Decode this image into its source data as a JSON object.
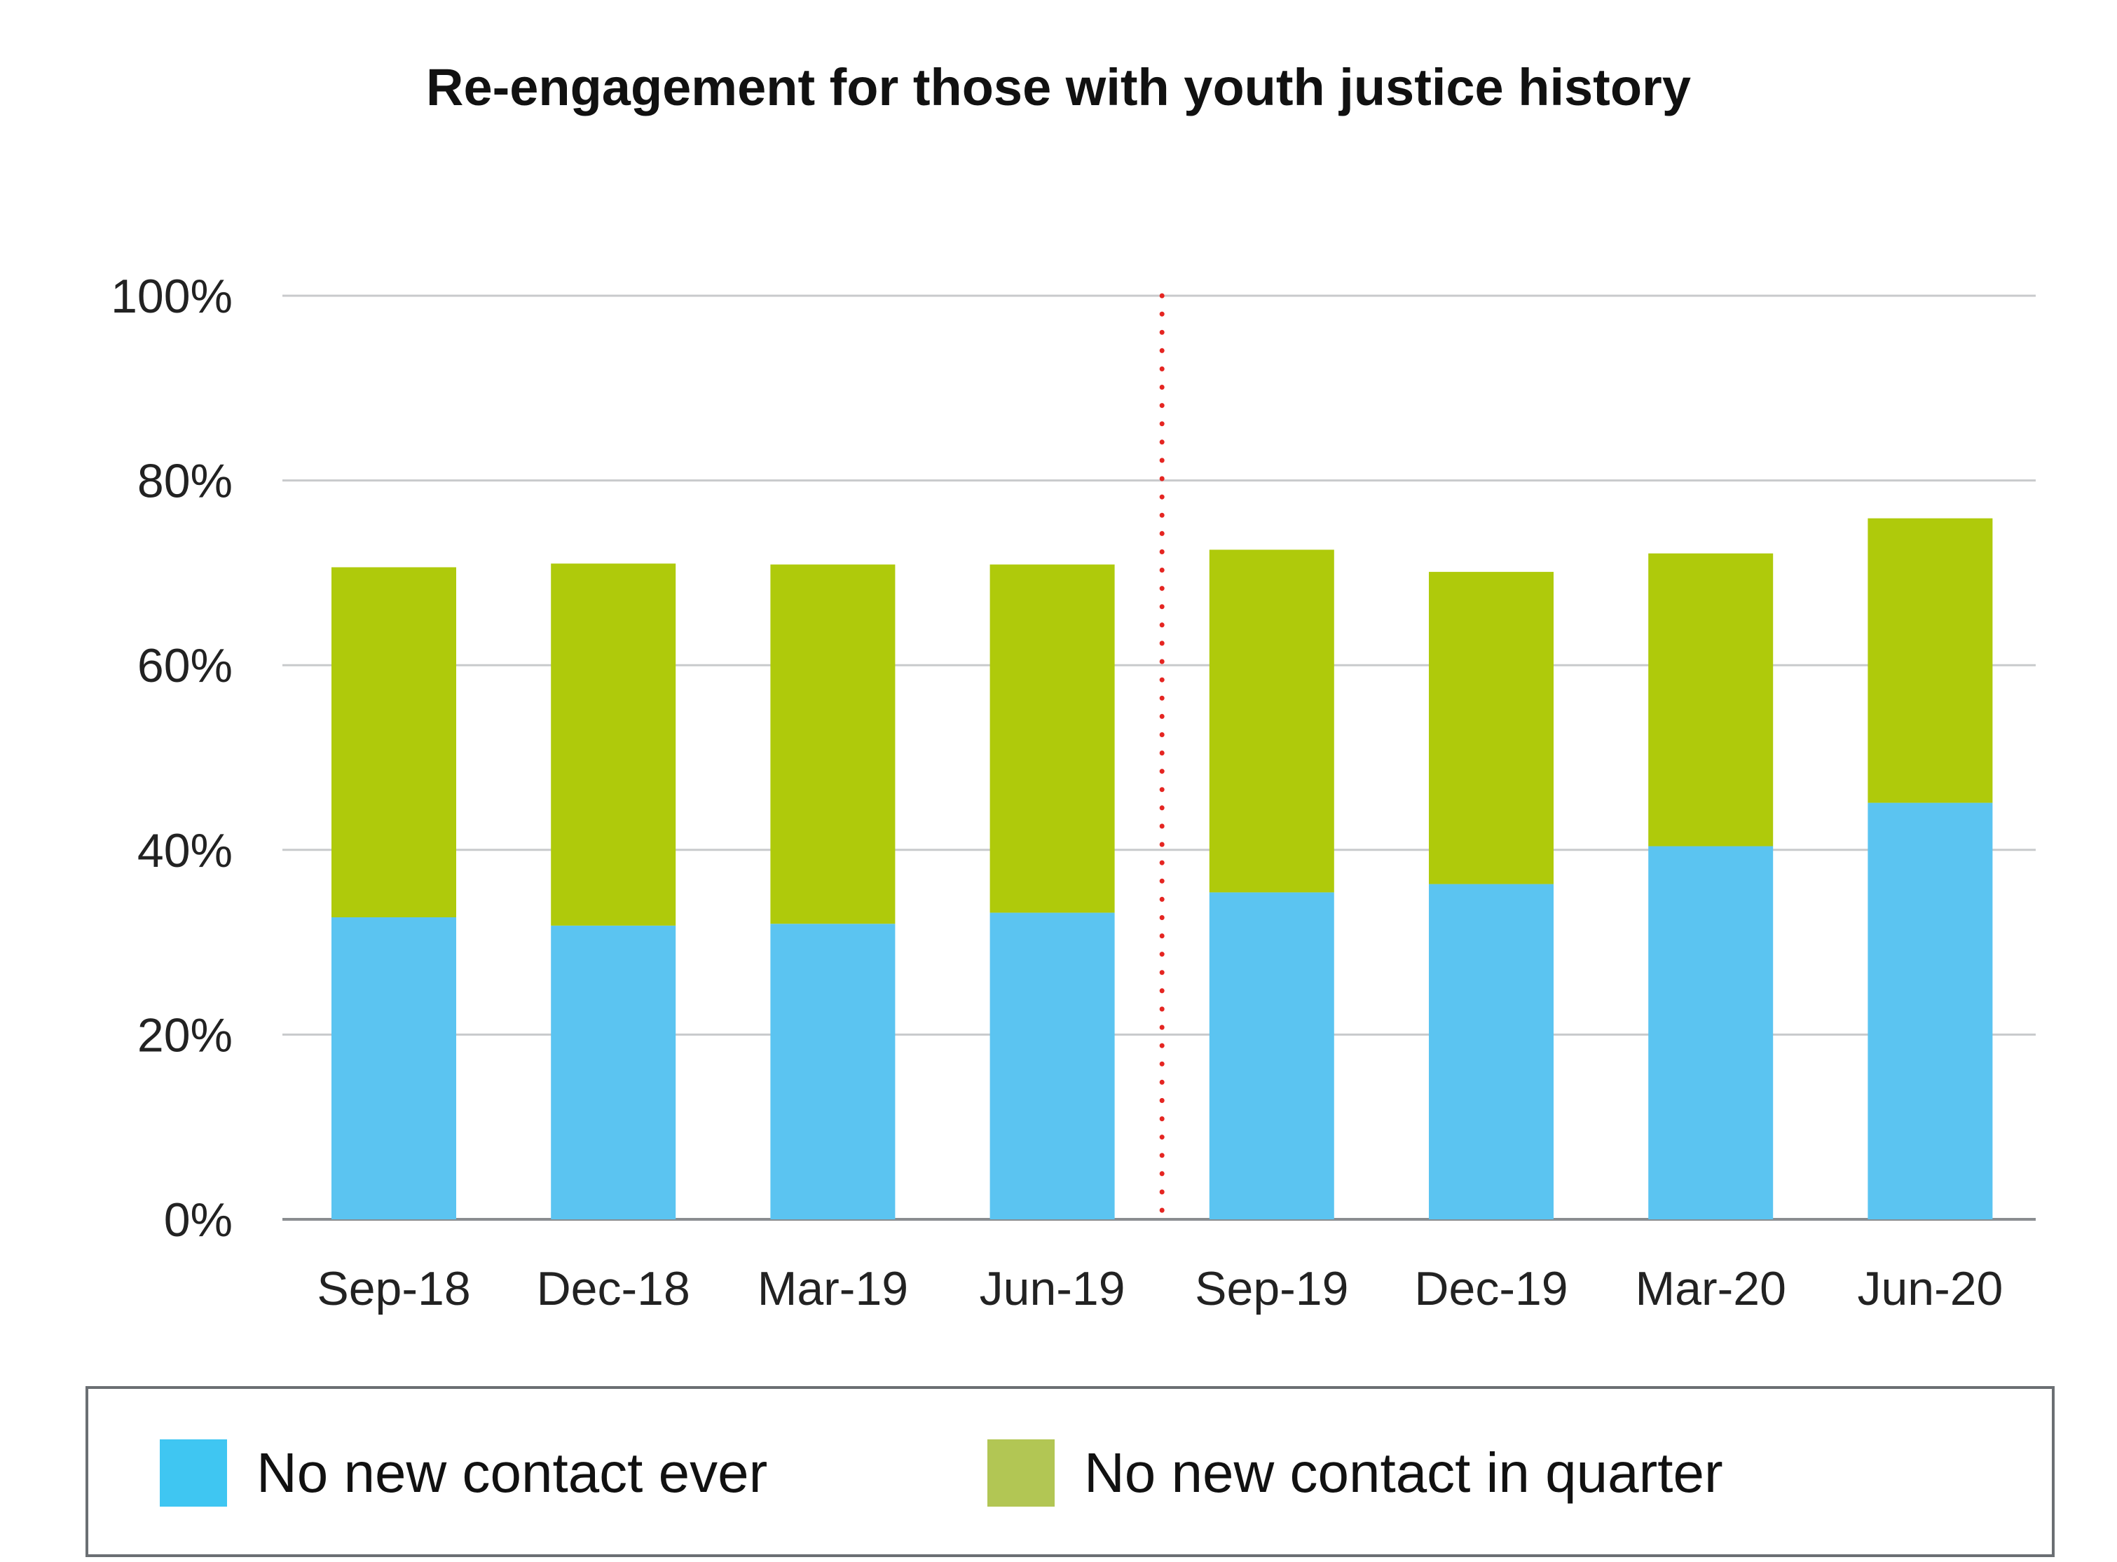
{
  "chart_data": {
    "type": "bar",
    "stacked": true,
    "title": "Re-engagement for those with youth justice history",
    "categories": [
      "Sep-18",
      "Dec-18",
      "Mar-19",
      "Jun-19",
      "Sep-19",
      "Dec-19",
      "Mar-20",
      "Jun-20"
    ],
    "series": [
      {
        "name": "No new contact ever",
        "color": "#5bc4f1",
        "values": [
          32.7,
          31.8,
          32.0,
          33.2,
          35.4,
          36.3,
          40.4,
          45.1
        ]
      },
      {
        "name": "No new contact in quarter",
        "color": "#afca0b",
        "values": [
          37.9,
          39.2,
          38.9,
          37.7,
          37.1,
          33.8,
          31.7,
          30.8
        ]
      }
    ],
    "ylim": [
      0,
      100
    ],
    "yticks": [
      "0%",
      "20%",
      "40%",
      "60%",
      "80%",
      "100%"
    ],
    "ytick_values": [
      0,
      20,
      40,
      60,
      80,
      100
    ],
    "grid": true,
    "reference_line": {
      "type": "vertical",
      "style": "dotted",
      "color": "#e52521",
      "after_category": "Jun-19"
    },
    "legend": {
      "position": "bottom",
      "items": [
        {
          "label": "No new contact ever",
          "color": "#3fc6f2"
        },
        {
          "label": "No new contact in quarter",
          "color": "#b2c654"
        }
      ]
    }
  }
}
